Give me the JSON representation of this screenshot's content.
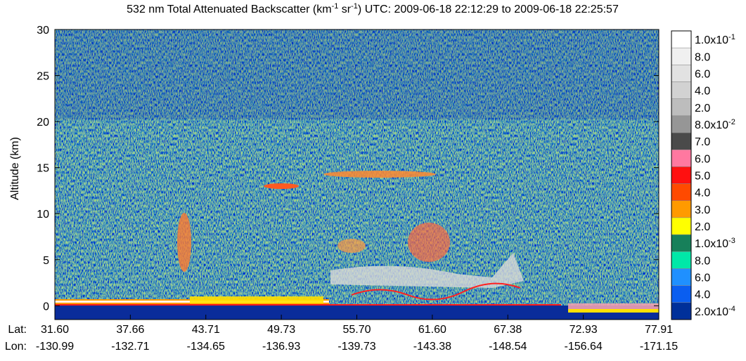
{
  "chart_data": {
    "type": "curtain",
    "title": [
      "532 nm Total Attenuated Backscatter (km",
      "-1",
      " sr",
      "-1",
      ") UTC: 2009-06-18 22:12:29 to 2009-06-18 22:25:57"
    ],
    "ylabel": "Altitude (km)",
    "ylim": [
      -1.5,
      30
    ],
    "yticks": [
      0,
      5,
      10,
      15,
      20,
      25,
      30
    ],
    "lat_label": "Lat:",
    "lon_label": "Lon:",
    "lat": [
      "31.60",
      "37.66",
      "43.71",
      "49.73",
      "55.70",
      "61.60",
      "67.38",
      "72.93",
      "77.91"
    ],
    "lon": [
      "-130.99",
      "-132.71",
      "-134.65",
      "-136.93",
      "-139.73",
      "-143.38",
      "-148.54",
      "-156.64",
      "-171.15"
    ],
    "colorbar": [
      {
        "label": "1.0x10",
        "exp": "-1",
        "color": "#ffffff"
      },
      {
        "label": "8.0",
        "color": "#f0f0f0"
      },
      {
        "label": "6.0",
        "color": "#e2e2e2"
      },
      {
        "label": "4.0",
        "color": "#d2d2d2"
      },
      {
        "label": "2.0",
        "color": "#bdbdbd"
      },
      {
        "label": "8.0x10",
        "exp": "-2",
        "color": "#969696"
      },
      {
        "label": "7.0",
        "color": "#4a4a4a"
      },
      {
        "label": "6.0",
        "color": "#ff78a0"
      },
      {
        "label": "5.0",
        "color": "#ff1010"
      },
      {
        "label": "4.0",
        "color": "#ff4a00"
      },
      {
        "label": "3.0",
        "color": "#ff9a00"
      },
      {
        "label": "2.0",
        "color": "#ffff00"
      },
      {
        "label": "1.0x10",
        "exp": "-3",
        "color": "#17805a"
      },
      {
        "label": "8.0",
        "color": "#00e8a8"
      },
      {
        "label": "6.0",
        "color": "#1f90ff"
      },
      {
        "label": "4.0",
        "color": "#0a5ef0"
      },
      {
        "label": "2.0x10",
        "exp": "-4",
        "color": "#00309a"
      }
    ]
  }
}
